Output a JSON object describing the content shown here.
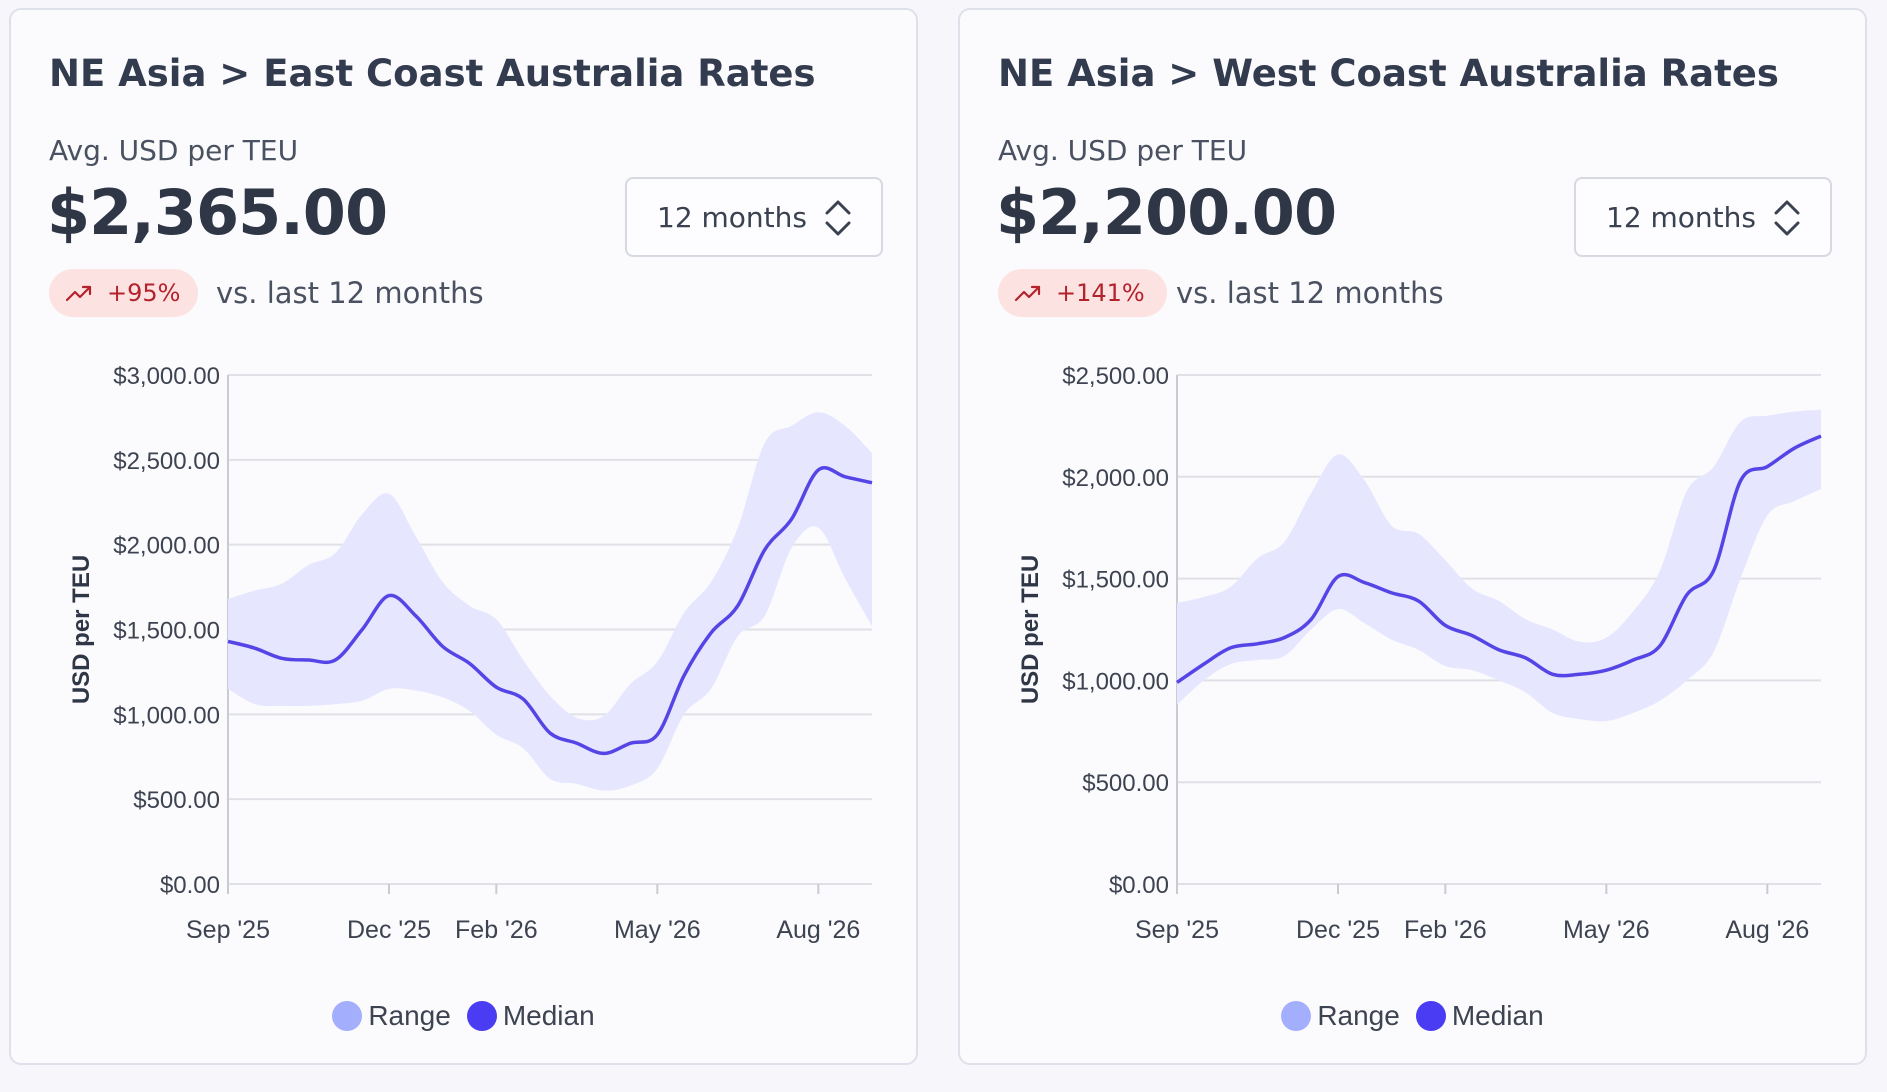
{
  "cards": [
    {
      "title": "NE Asia > East Coast Australia Rates",
      "avg_label": "Avg. USD per TEU",
      "value": "$2,365.00",
      "period_label": "12 months",
      "change": "+95%",
      "change_suffix": "vs. last 12 months"
    },
    {
      "title": "NE Asia > West Coast Australia Rates",
      "avg_label": "Avg. USD per TEU",
      "value": "$2,200.00",
      "period_label": "12 months",
      "change": "+141%",
      "change_suffix": "vs. last 12 months"
    }
  ],
  "colors": {
    "range_fill": "#e6e7ff",
    "median_line": "#5545e6",
    "legend_range": "#a3aefd",
    "legend_median": "#4a3cf3",
    "grid": "#e0e1e6",
    "pill_bg": "#fde2e2",
    "pill_text": "#b4232c"
  },
  "chart_data": [
    {
      "type": "area",
      "ylabel": "USD per TEU",
      "ylim": [
        0,
        3000
      ],
      "yticks": [
        "$0.00",
        "$500.00",
        "$1,000.00",
        "$1,500.00",
        "$2,000.00",
        "$2,500.00",
        "$3,000.00"
      ],
      "ytick_values": [
        0,
        500,
        1000,
        1500,
        2000,
        2500,
        3000
      ],
      "xlim": [
        0,
        12
      ],
      "xticks": [
        "Sep '25",
        "Dec '25",
        "Feb '26",
        "May '26",
        "Aug '26"
      ],
      "xtick_values": [
        0,
        3,
        5,
        8,
        11
      ],
      "legend": [
        "Range",
        "Median"
      ],
      "grid": true,
      "x": [
        0,
        0.5,
        1,
        1.5,
        2,
        2.5,
        3,
        3.5,
        4,
        4.5,
        5,
        5.5,
        6,
        6.5,
        7,
        7.5,
        8,
        8.5,
        9,
        9.5,
        10,
        10.5,
        11,
        11.5,
        12
      ],
      "low": [
        1150,
        1060,
        1050,
        1050,
        1060,
        1080,
        1150,
        1140,
        1100,
        1020,
        880,
        800,
        620,
        590,
        550,
        580,
        680,
        1000,
        1150,
        1460,
        1580,
        1980,
        2100,
        1800,
        1520
      ],
      "high": [
        1680,
        1730,
        1770,
        1880,
        1950,
        2180,
        2300,
        2050,
        1780,
        1640,
        1560,
        1320,
        1110,
        980,
        990,
        1180,
        1310,
        1600,
        1780,
        2100,
        2600,
        2700,
        2780,
        2700,
        2540
      ],
      "median": [
        1430,
        1390,
        1330,
        1320,
        1320,
        1500,
        1700,
        1580,
        1400,
        1300,
        1160,
        1090,
        890,
        830,
        770,
        830,
        880,
        1230,
        1480,
        1640,
        1970,
        2150,
        2440,
        2400,
        2365
      ]
    },
    {
      "type": "area",
      "ylabel": "USD per TEU",
      "ylim": [
        0,
        2500
      ],
      "yticks": [
        "$0.00",
        "$500.00",
        "$1,000.00",
        "$1,500.00",
        "$2,000.00",
        "$2,500.00"
      ],
      "ytick_values": [
        0,
        500,
        1000,
        1500,
        2000,
        2500
      ],
      "xlim": [
        0,
        12
      ],
      "xticks": [
        "Sep '25",
        "Dec '25",
        "Feb '26",
        "May '26",
        "Aug '26"
      ],
      "xtick_values": [
        0,
        3,
        5,
        8,
        11
      ],
      "legend": [
        "Range",
        "Median"
      ],
      "grid": true,
      "x": [
        0,
        0.5,
        1,
        1.5,
        2,
        2.5,
        3,
        3.5,
        4,
        4.5,
        5,
        5.5,
        6,
        6.5,
        7,
        7.5,
        8,
        8.5,
        9,
        9.5,
        10,
        10.5,
        11,
        11.5,
        12
      ],
      "low": [
        880,
        1000,
        1080,
        1100,
        1120,
        1250,
        1350,
        1280,
        1200,
        1150,
        1070,
        1050,
        1000,
        940,
        840,
        810,
        800,
        840,
        900,
        1000,
        1140,
        1500,
        1810,
        1880,
        1940
      ],
      "high": [
        1380,
        1410,
        1460,
        1600,
        1680,
        1920,
        2110,
        1980,
        1760,
        1720,
        1590,
        1450,
        1390,
        1300,
        1250,
        1190,
        1210,
        1340,
        1540,
        1930,
        2050,
        2270,
        2300,
        2320,
        2330
      ],
      "median": [
        990,
        1080,
        1160,
        1180,
        1210,
        1300,
        1510,
        1480,
        1430,
        1390,
        1270,
        1220,
        1150,
        1110,
        1030,
        1030,
        1050,
        1100,
        1170,
        1420,
        1540,
        1980,
        2050,
        2140,
        2200
      ]
    }
  ]
}
